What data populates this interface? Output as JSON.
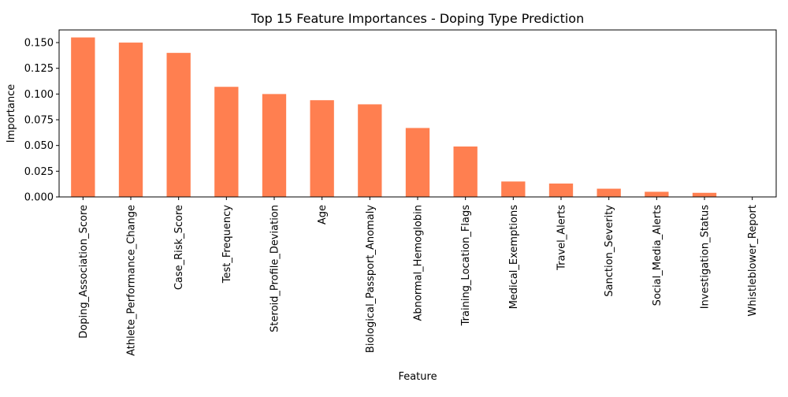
{
  "chart_data": {
    "type": "bar",
    "title": "Top 15 Feature Importances - Doping Type Prediction",
    "xlabel": "Feature",
    "ylabel": "Importance",
    "ylim": [
      0,
      0.1623
    ],
    "yticks": [
      "0.000",
      "0.025",
      "0.050",
      "0.075",
      "0.100",
      "0.125",
      "0.150"
    ],
    "grid": false,
    "bar_color": "#ff7f50",
    "categories": [
      "Doping_Association_Score",
      "Athlete_Performance_Change",
      "Case_Risk_Score",
      "Test_Frequency",
      "Steroid_Profile_Deviation",
      "Age",
      "Biological_Passport_Anomaly",
      "Abnormal_Hemoglobin",
      "Training_Location_Flags",
      "Medical_Exemptions",
      "Travel_Alerts",
      "Sanction_Severity",
      "Social_Media_Alerts",
      "Investigation_Status",
      "Whistleblower_Report"
    ],
    "values": [
      0.155,
      0.15,
      0.14,
      0.107,
      0.1,
      0.094,
      0.09,
      0.067,
      0.049,
      0.015,
      0.013,
      0.008,
      0.005,
      0.004,
      0.0
    ]
  }
}
